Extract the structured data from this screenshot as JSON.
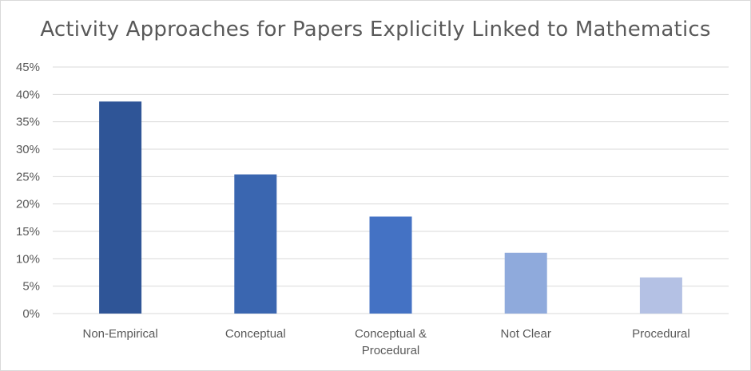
{
  "chart_data": {
    "type": "bar",
    "title": "Activity Approaches for Papers Explicitly Linked to Mathematics",
    "xlabel": "",
    "ylabel": "",
    "ylim": [
      0,
      45
    ],
    "y_ticks": [
      "0%",
      "5%",
      "10%",
      "15%",
      "20%",
      "25%",
      "30%",
      "35%",
      "40%",
      "45%"
    ],
    "categories": [
      [
        "Non-Empirical"
      ],
      [
        "Conceptual"
      ],
      [
        "Conceptual &",
        "Procedural"
      ],
      [
        "Not Clear"
      ],
      [
        "Procedural"
      ]
    ],
    "values": [
      38.7,
      25.4,
      17.7,
      11.1,
      6.6
    ],
    "colors": [
      "#2f5597",
      "#3a66b0",
      "#4472c4",
      "#8faadc",
      "#b4c1e4"
    ],
    "grid": true,
    "legend": "none"
  }
}
